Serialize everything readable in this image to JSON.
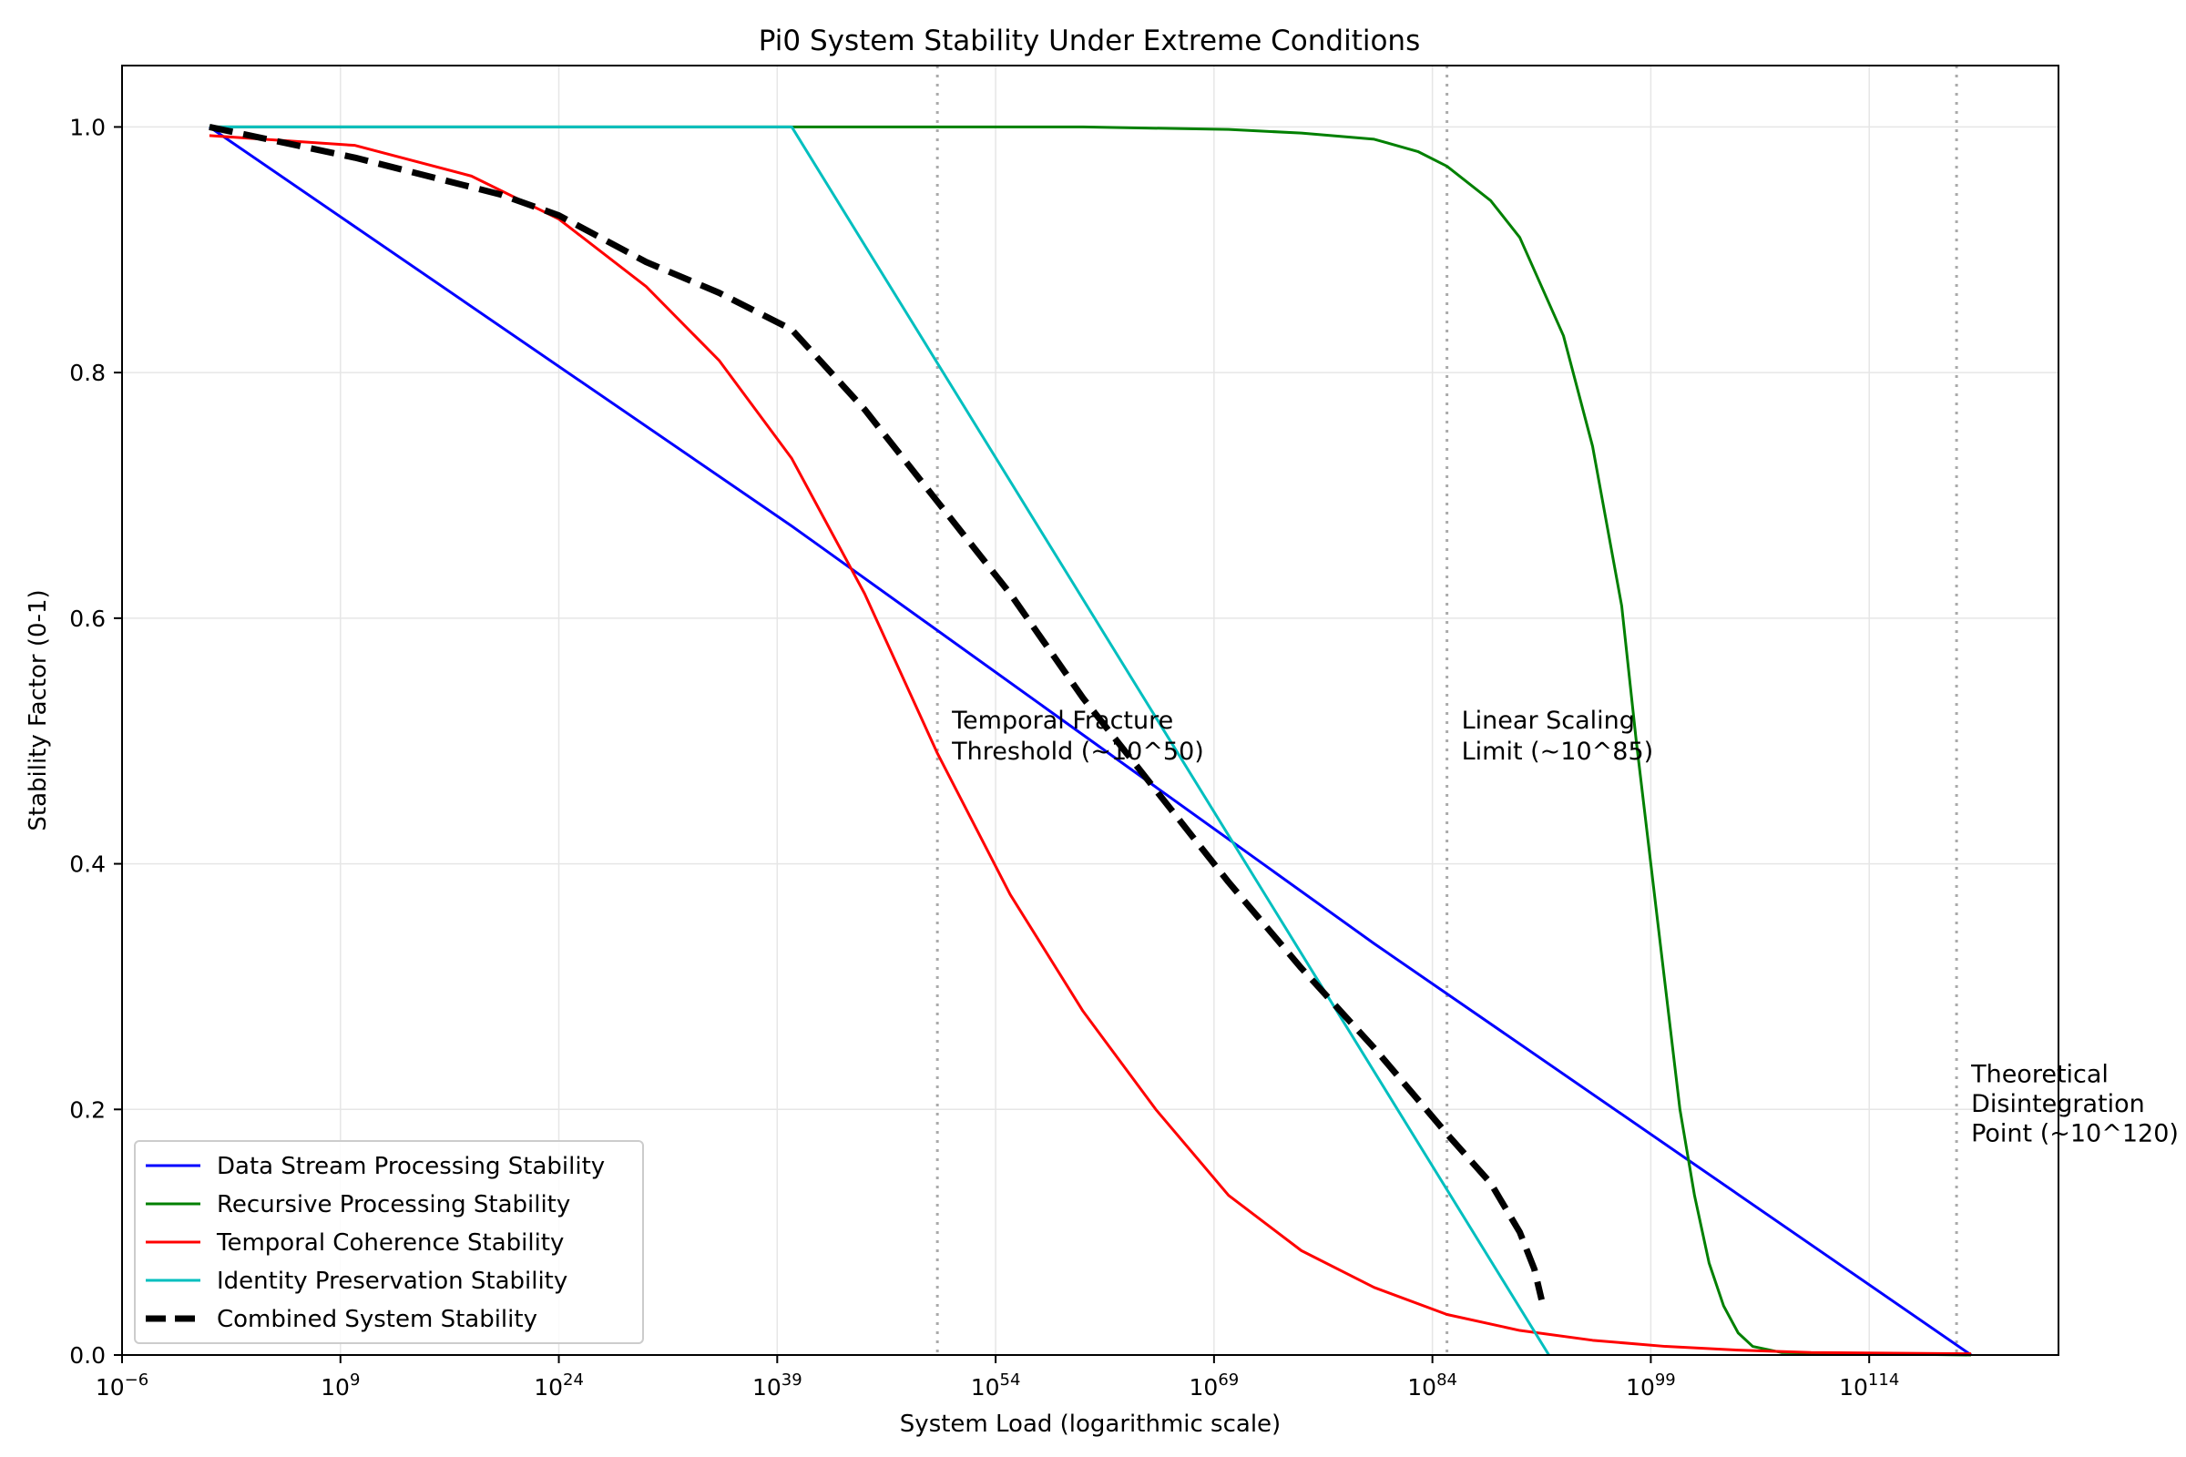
{
  "chart_data": {
    "type": "line",
    "title": "Pi0 System Stability Under Extreme Conditions",
    "xlabel": "System Load (logarithmic scale)",
    "ylabel": "Stability Factor (0-1)",
    "x_scale": "log",
    "xlim_exponent": [
      -6,
      127
    ],
    "ylim": [
      0,
      1.05
    ],
    "x_ticks": [
      {
        "base": "10",
        "exp": "−6",
        "value": -6
      },
      {
        "base": "10",
        "exp": "9",
        "value": 9
      },
      {
        "base": "10",
        "exp": "24",
        "value": 24
      },
      {
        "base": "10",
        "exp": "39",
        "value": 39
      },
      {
        "base": "10",
        "exp": "54",
        "value": 54
      },
      {
        "base": "10",
        "exp": "69",
        "value": 69
      },
      {
        "base": "10",
        "exp": "84",
        "value": 84
      },
      {
        "base": "10",
        "exp": "99",
        "value": 99
      },
      {
        "base": "10",
        "exp": "114",
        "value": 114
      }
    ],
    "y_ticks": [
      {
        "label": "0.0",
        "value": 0.0
      },
      {
        "label": "0.2",
        "value": 0.2
      },
      {
        "label": "0.4",
        "value": 0.4
      },
      {
        "label": "0.6",
        "value": 0.6
      },
      {
        "label": "0.8",
        "value": 0.8
      },
      {
        "label": "1.0",
        "value": 1.0
      }
    ],
    "grid": true,
    "legend_position": "lower-left",
    "series": [
      {
        "name": "Data Stream Processing Stability",
        "color": "#0000ff",
        "width": 3,
        "dash": "",
        "points": [
          [
            0,
            1.0
          ],
          [
            40,
            0.675
          ],
          [
            80,
            0.335
          ],
          [
            121,
            0.0
          ]
        ]
      },
      {
        "name": "Recursive Processing Stability",
        "color": "#008000",
        "width": 3,
        "dash": "",
        "points": [
          [
            0,
            1.0
          ],
          [
            40,
            1.0
          ],
          [
            60,
            1.0
          ],
          [
            70,
            0.998
          ],
          [
            75,
            0.995
          ],
          [
            80,
            0.99
          ],
          [
            83,
            0.98
          ],
          [
            85,
            0.968
          ],
          [
            88,
            0.94
          ],
          [
            90,
            0.91
          ],
          [
            93,
            0.83
          ],
          [
            95,
            0.74
          ],
          [
            97,
            0.61
          ],
          [
            98,
            0.5
          ],
          [
            99,
            0.4
          ],
          [
            100,
            0.3
          ],
          [
            101,
            0.2
          ],
          [
            102,
            0.13
          ],
          [
            103,
            0.075
          ],
          [
            104,
            0.04
          ],
          [
            105,
            0.018
          ],
          [
            106,
            0.007
          ],
          [
            108,
            0.002
          ],
          [
            121,
            0.0
          ]
        ]
      },
      {
        "name": "Temporal Coherence Stability",
        "color": "#ff0000",
        "width": 3,
        "dash": "",
        "points": [
          [
            0,
            0.993
          ],
          [
            10,
            0.985
          ],
          [
            18,
            0.96
          ],
          [
            24,
            0.925
          ],
          [
            30,
            0.87
          ],
          [
            35,
            0.81
          ],
          [
            40,
            0.73
          ],
          [
            45,
            0.62
          ],
          [
            50,
            0.49
          ],
          [
            55,
            0.375
          ],
          [
            60,
            0.28
          ],
          [
            65,
            0.2
          ],
          [
            70,
            0.13
          ],
          [
            75,
            0.085
          ],
          [
            80,
            0.055
          ],
          [
            85,
            0.033
          ],
          [
            90,
            0.02
          ],
          [
            95,
            0.012
          ],
          [
            100,
            0.007
          ],
          [
            105,
            0.004
          ],
          [
            110,
            0.002
          ],
          [
            121,
            0.001
          ]
        ]
      },
      {
        "name": "Identity Preservation Stability",
        "color": "#00bfbf",
        "width": 3,
        "dash": "",
        "points": [
          [
            0,
            1.0
          ],
          [
            40,
            1.0
          ],
          [
            92,
            0.0
          ]
        ]
      },
      {
        "name": "Combined System Stability",
        "color": "#000000",
        "width": 7,
        "dash": "26,12",
        "points": [
          [
            0,
            1.0
          ],
          [
            10,
            0.975
          ],
          [
            20,
            0.945
          ],
          [
            24,
            0.928
          ],
          [
            30,
            0.89
          ],
          [
            35,
            0.865
          ],
          [
            40,
            0.835
          ],
          [
            45,
            0.77
          ],
          [
            50,
            0.695
          ],
          [
            55,
            0.62
          ],
          [
            60,
            0.535
          ],
          [
            65,
            0.46
          ],
          [
            70,
            0.385
          ],
          [
            75,
            0.315
          ],
          [
            80,
            0.25
          ],
          [
            85,
            0.18
          ],
          [
            88,
            0.14
          ],
          [
            90,
            0.1
          ],
          [
            91,
            0.07
          ],
          [
            91.5,
            0.045
          ]
        ]
      }
    ],
    "vlines": [
      {
        "x": 50,
        "label_lines": [
          "Temporal Fracture",
          "Threshold (~10^50)"
        ],
        "label_y": [
          0.51,
          0.485
        ]
      },
      {
        "x": 85,
        "label_lines": [
          "Linear Scaling",
          "Limit (~10^85)"
        ],
        "label_y": [
          0.51,
          0.485
        ]
      },
      {
        "x": 120,
        "label_lines": [
          "Theoretical",
          "Disintegration",
          "Point (~10^120)"
        ],
        "label_y": [
          0.222,
          0.198,
          0.174
        ]
      }
    ]
  }
}
